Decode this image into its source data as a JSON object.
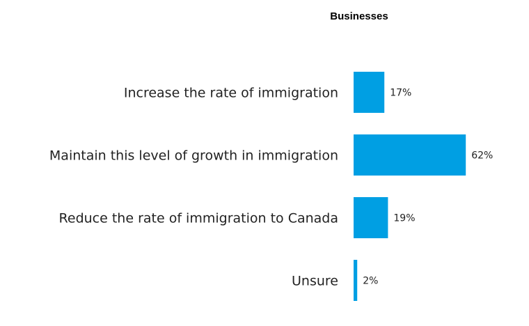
{
  "chart_data": {
    "type": "bar",
    "orientation": "horizontal",
    "title": "Businesses",
    "categories": [
      "Increase the rate of immigration",
      "Maintain this level of growth in immigration",
      "Reduce the rate of immigration to Canada",
      "Unsure"
    ],
    "values": [
      17,
      62,
      19,
      2
    ],
    "value_labels": [
      "17%",
      "62%",
      "19%",
      "2%"
    ],
    "unit": "%",
    "xlim": [
      0,
      100
    ],
    "grid": false,
    "bar_color": "#009FE3"
  }
}
